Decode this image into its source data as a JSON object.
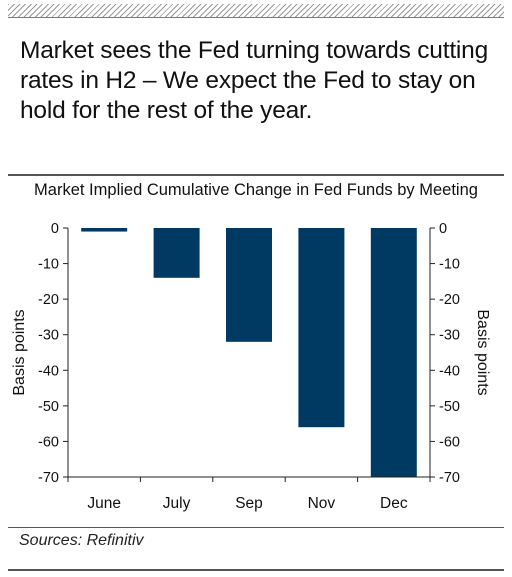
{
  "headline": "Market sees the Fed turning towards cutting rates in H2 – We expect the Fed to stay on hold for the rest of the year.",
  "source": "Sources: Refinitiv",
  "colors": {
    "bar": "#003a63",
    "axis": "#222222",
    "rule": "#555555"
  },
  "chart_data": {
    "type": "bar",
    "title": "Market Implied Cumulative Change in Fed Funds by Meeting",
    "categories": [
      "June",
      "July",
      "Sep",
      "Nov",
      "Dec"
    ],
    "values": [
      -1,
      -14,
      -32,
      -56,
      -70
    ],
    "ylabel": "Basis points",
    "ylabel_right": "Basis points",
    "ylim": [
      -70,
      0
    ],
    "yticks": [
      0,
      -10,
      -20,
      -30,
      -40,
      -50,
      -60,
      -70
    ],
    "ytick_labels": [
      "0",
      "-10",
      "-20",
      "-30",
      "-40",
      "-50",
      "-60",
      "-70"
    ],
    "grid": false,
    "legend": "none"
  }
}
